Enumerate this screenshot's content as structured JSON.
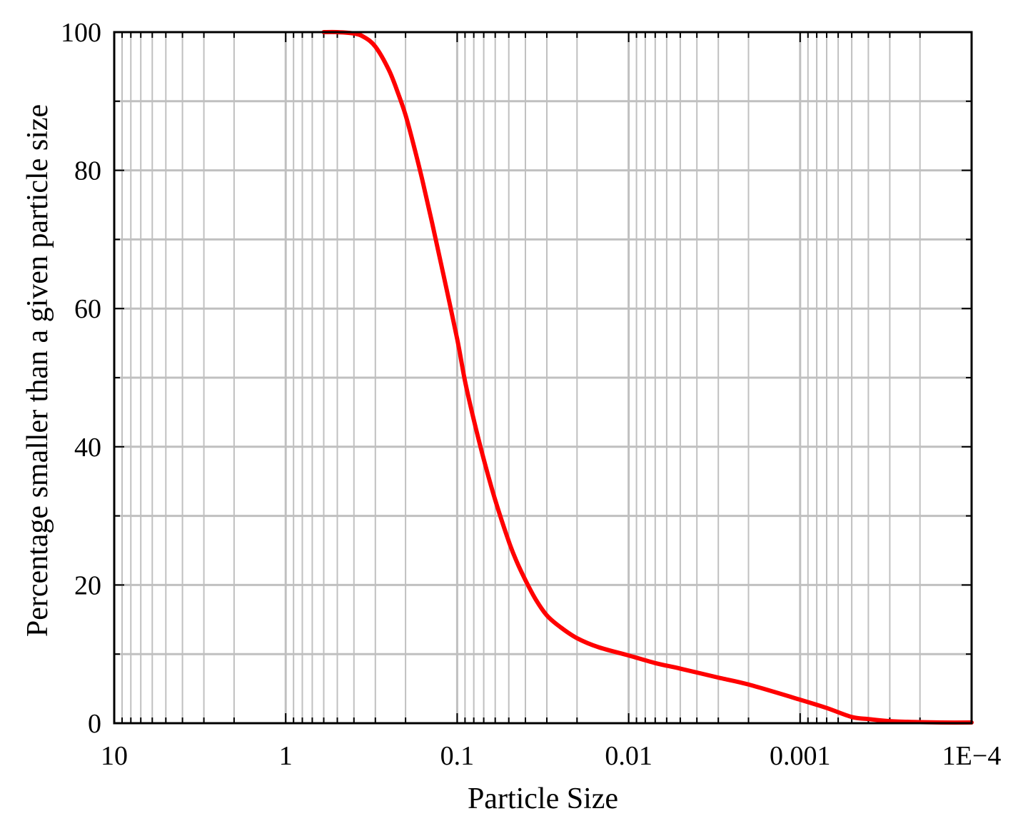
{
  "chart_data": {
    "type": "line",
    "title": "",
    "xlabel": "Particle Size",
    "ylabel": "Percentage smaller than a given particle size",
    "x_scale": "log",
    "x_reversed": true,
    "xlim": [
      10,
      0.0001
    ],
    "ylim": [
      0,
      100
    ],
    "grid": true,
    "x_ticks": [
      {
        "value": 10,
        "label": "10"
      },
      {
        "value": 1,
        "label": "1"
      },
      {
        "value": 0.1,
        "label": "0.1"
      },
      {
        "value": 0.01,
        "label": "0.01"
      },
      {
        "value": 0.001,
        "label": "0.001"
      },
      {
        "value": 0.0001,
        "label": "1E−4"
      }
    ],
    "y_ticks": [
      {
        "value": 0,
        "label": "0"
      },
      {
        "value": 20,
        "label": "20"
      },
      {
        "value": 40,
        "label": "40"
      },
      {
        "value": 60,
        "label": "60"
      },
      {
        "value": 80,
        "label": "80"
      },
      {
        "value": 100,
        "label": "100"
      }
    ],
    "colors": {
      "series": "#ff0000",
      "grid": "#c0c0c0",
      "axis": "#000000"
    },
    "series": [
      {
        "name": "",
        "x": [
          0.6,
          0.5,
          0.4,
          0.35,
          0.3,
          0.25,
          0.22,
          0.2,
          0.18,
          0.16,
          0.14,
          0.12,
          0.1,
          0.09,
          0.08,
          0.07,
          0.06,
          0.05,
          0.045,
          0.04,
          0.035,
          0.03,
          0.025,
          0.02,
          0.015,
          0.01,
          0.007,
          0.005,
          0.003,
          0.002,
          0.001,
          0.0007,
          0.0005,
          0.0004,
          0.0003,
          0.0002,
          0.00015,
          0.0001
        ],
        "y": [
          100,
          100,
          99.8,
          99.3,
          97.9,
          94.5,
          91.0,
          88.0,
          83.8,
          78.7,
          72.4,
          64.8,
          55.6,
          49.5,
          43.9,
          38.2,
          32.3,
          26.3,
          23.4,
          20.7,
          18.0,
          15.6,
          13.9,
          12.3,
          11.0,
          9.8,
          8.7,
          7.9,
          6.6,
          5.6,
          3.4,
          2.2,
          0.9,
          0.6,
          0.3,
          0.15,
          0.1,
          0.1
        ]
      }
    ]
  }
}
